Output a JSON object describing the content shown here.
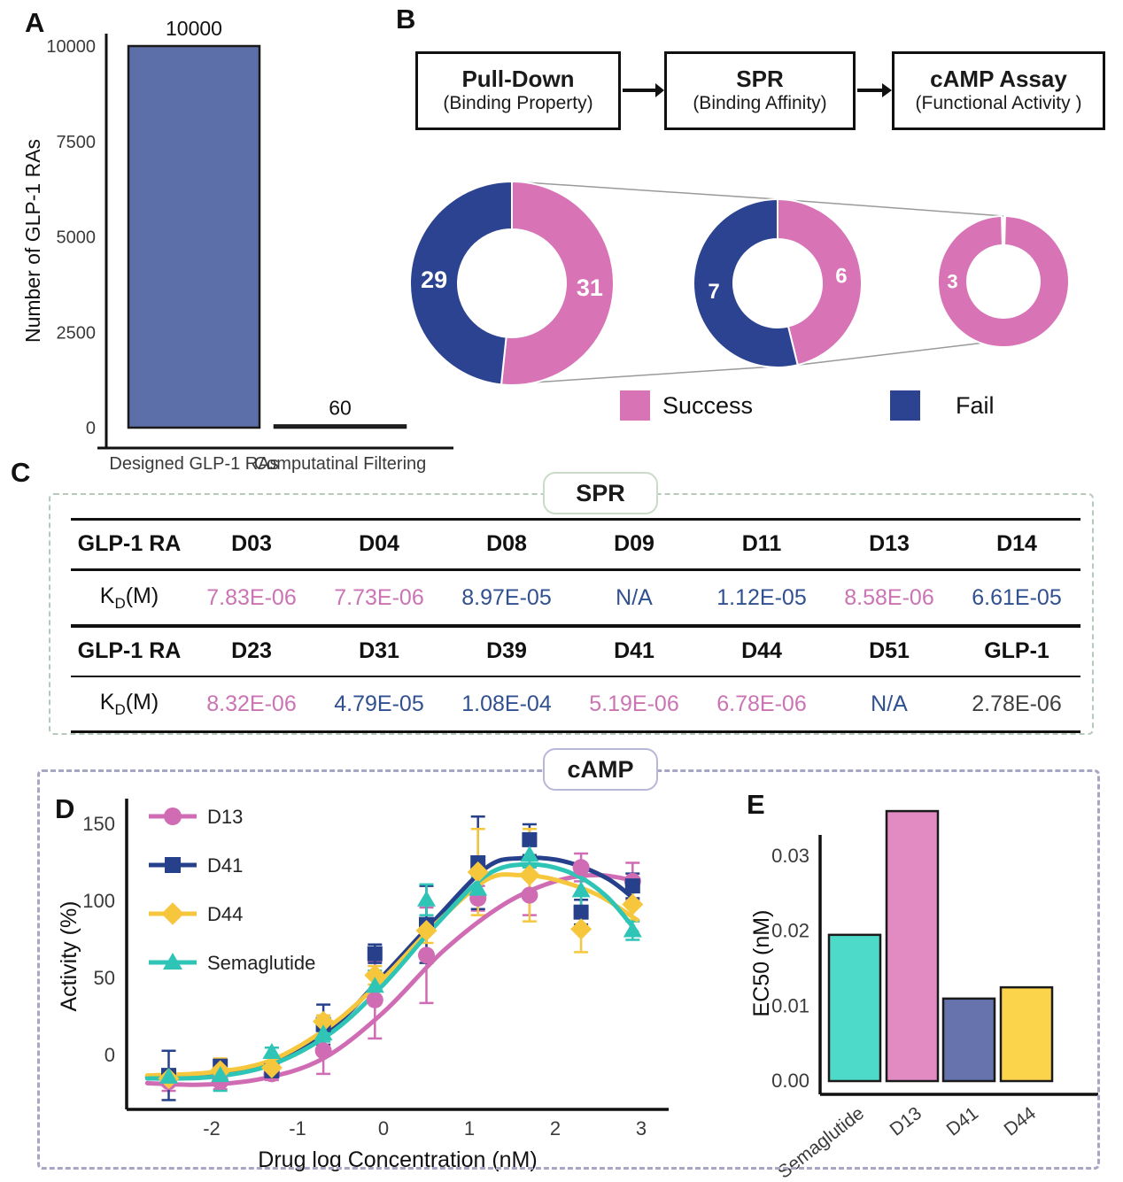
{
  "labels": {
    "a": "A",
    "b": "B",
    "c": "C",
    "d": "D",
    "e": "E"
  },
  "colors": {
    "panel_a_bar": "#5c6fa8",
    "success_pink": "#d873b6",
    "fail_navy": "#2b4390",
    "funnel_line": "#9a9a9a",
    "spr_border": "#b6c9ba",
    "camp_border": "#a7a6c4"
  },
  "flow": {
    "boxes": [
      {
        "title": "Pull-Down",
        "subtitle": "(Binding Property)"
      },
      {
        "title": "SPR",
        "subtitle": "(Binding Affinity)"
      },
      {
        "title": "cAMP Assay",
        "subtitle": "(Functional Activity )"
      }
    ]
  },
  "spr_section": {
    "title": "SPR",
    "row_header_label": "GLP-1 RA",
    "kd_label": {
      "pre": "K",
      "sub": "D",
      "post": "(M)"
    },
    "tones": {
      "pink": "#cb74b4",
      "blue": "#30508f",
      "dark": "#3f3f3f"
    },
    "groups": [
      {
        "columns": [
          "D03",
          "D04",
          "D08",
          "D09",
          "D11",
          "D13",
          "D14"
        ],
        "values": [
          {
            "text": "7.83E-06",
            "tone": "pink"
          },
          {
            "text": "7.73E-06",
            "tone": "pink"
          },
          {
            "text": "8.97E-05",
            "tone": "blue"
          },
          {
            "text": "N/A",
            "tone": "blue"
          },
          {
            "text": "1.12E-05",
            "tone": "blue"
          },
          {
            "text": "8.58E-06",
            "tone": "pink"
          },
          {
            "text": "6.61E-05",
            "tone": "blue"
          }
        ]
      },
      {
        "columns": [
          "D23",
          "D31",
          "D39",
          "D41",
          "D44",
          "D51",
          "GLP-1"
        ],
        "values": [
          {
            "text": "8.32E-06",
            "tone": "pink"
          },
          {
            "text": "4.79E-05",
            "tone": "blue"
          },
          {
            "text": "1.08E-04",
            "tone": "blue"
          },
          {
            "text": "5.19E-06",
            "tone": "pink"
          },
          {
            "text": "6.78E-06",
            "tone": "pink"
          },
          {
            "text": "N/A",
            "tone": "blue"
          },
          {
            "text": "2.78E-06",
            "tone": "dark"
          }
        ]
      }
    ]
  },
  "camp_section": {
    "title": "cAMP"
  },
  "chart_data": [
    {
      "id": "designed-count-bar",
      "panel": "A",
      "type": "bar",
      "categories": [
        "Designed GLP-1 RAs",
        "Computatinal Filtering"
      ],
      "values": [
        10000,
        60
      ],
      "value_labels": [
        "10000",
        "60"
      ],
      "title": "",
      "xlabel": "",
      "ylabel": "Number of GLP-1 RAs",
      "yticks": [
        0,
        2500,
        5000,
        7500,
        10000
      ],
      "ylim": [
        0,
        10000
      ],
      "bar_fill": "#5c6fa8",
      "bar_stroke": "#1a1a1a",
      "grid": false
    },
    {
      "id": "screening-funnel-donuts",
      "panel": "B",
      "type": "pie",
      "stages": [
        {
          "assay": "Pull-Down",
          "success": 31,
          "fail": 29
        },
        {
          "assay": "SPR",
          "success": 6,
          "fail": 7
        },
        {
          "assay": "cAMP Assay",
          "success": 3,
          "fail": 0
        }
      ],
      "legend": [
        {
          "label": "Success",
          "color": "#d873b6"
        },
        {
          "label": "Fail",
          "color": "#2b4390"
        }
      ]
    },
    {
      "id": "camp-dose-response",
      "panel": "D",
      "type": "line",
      "title": "",
      "xlabel": "Drug log Concentration (nM)",
      "ylabel": "Activity (%)",
      "xticks": [
        -2,
        -1,
        0,
        1,
        2,
        3
      ],
      "yticks": [
        0,
        50,
        100,
        150
      ],
      "xlim": [
        -3.0,
        3.25
      ],
      "ylim": [
        -45,
        165
      ],
      "grid": false,
      "legend_position": "top-left",
      "x": [
        -2.5,
        -1.9,
        -1.3,
        -0.7,
        -0.1,
        0.5,
        1.1,
        1.7,
        2.3,
        2.9
      ],
      "series": [
        {
          "name": "D13",
          "color": "#d06cb4",
          "marker": "circle",
          "y": [
            -17,
            -17,
            -12,
            3,
            36,
            65,
            102,
            104,
            122,
            113
          ],
          "err": [
            6,
            5,
            4,
            15,
            25,
            31,
            8,
            13,
            9,
            12
          ],
          "curve": [
            [
              -2.75,
              -18
            ],
            [
              -2.1,
              -19
            ],
            [
              -1.4,
              -15
            ],
            [
              -0.7,
              -2
            ],
            [
              0,
              28
            ],
            [
              0.7,
              68
            ],
            [
              1.4,
              98
            ],
            [
              2.0,
              113
            ],
            [
              2.5,
              117
            ],
            [
              2.95,
              113
            ]
          ]
        },
        {
          "name": "D41",
          "color": "#27408b",
          "marker": "square",
          "y": [
            -13,
            -7,
            -10,
            20,
            66,
            85,
            125,
            140,
            93,
            110
          ],
          "err": [
            16,
            4,
            4,
            13,
            6,
            25,
            30,
            10,
            8,
            8
          ],
          "curve": [
            [
              -2.75,
              -14
            ],
            [
              -2.0,
              -12
            ],
            [
              -1.3,
              -4
            ],
            [
              -0.6,
              18
            ],
            [
              0,
              52
            ],
            [
              0.6,
              88
            ],
            [
              1.2,
              122
            ],
            [
              1.6,
              128
            ],
            [
              2.1,
              126
            ],
            [
              2.6,
              115
            ],
            [
              2.95,
              100
            ]
          ]
        },
        {
          "name": "D44",
          "color": "#f6c63c",
          "marker": "diamond",
          "y": [
            -15,
            -10,
            -8,
            22,
            52,
            81,
            119,
            117,
            82,
            98
          ],
          "err": [
            4,
            8,
            4,
            4,
            6,
            8,
            28,
            30,
            15,
            10
          ],
          "curve": [
            [
              -2.75,
              -13
            ],
            [
              -2.0,
              -11
            ],
            [
              -1.3,
              -3
            ],
            [
              -0.6,
              20
            ],
            [
              0,
              50
            ],
            [
              0.6,
              85
            ],
            [
              1.2,
              114
            ],
            [
              1.6,
              117
            ],
            [
              2.0,
              114
            ],
            [
              2.5,
              104
            ],
            [
              2.95,
              88
            ]
          ]
        },
        {
          "name": "Semaglutide",
          "color": "#2ec4b6",
          "marker": "triangle",
          "y": [
            -14,
            -13,
            2,
            14,
            45,
            101,
            108,
            130,
            107,
            81
          ],
          "err": [
            5,
            10,
            3,
            5,
            10,
            10,
            8,
            8,
            12,
            6
          ],
          "curve": [
            [
              -2.75,
              -15
            ],
            [
              -2.0,
              -14
            ],
            [
              -1.3,
              -6
            ],
            [
              -0.6,
              15
            ],
            [
              0,
              46
            ],
            [
              0.6,
              84
            ],
            [
              1.2,
              117
            ],
            [
              1.7,
              124
            ],
            [
              2.2,
              118
            ],
            [
              2.6,
              103
            ],
            [
              2.95,
              80
            ]
          ]
        }
      ]
    },
    {
      "id": "ec50-bar",
      "panel": "E",
      "type": "bar",
      "categories": [
        "Semaglutide",
        "D13",
        "D41",
        "D44"
      ],
      "values": [
        0.0195,
        0.036,
        0.011,
        0.0125
      ],
      "colors": [
        "#4edac8",
        "#e18bc2",
        "#6673ad",
        "#fcd44c"
      ],
      "title": "",
      "xlabel": "",
      "ylabel": "EC50 (nM)",
      "ytick_labels": [
        "0.00",
        "0.01",
        "0.02",
        "0.03"
      ],
      "yticks": [
        0,
        0.01,
        0.02,
        0.03
      ],
      "ylim": [
        0,
        0.0375
      ],
      "bar_stroke": "#1a1a1a",
      "grid": false
    }
  ]
}
